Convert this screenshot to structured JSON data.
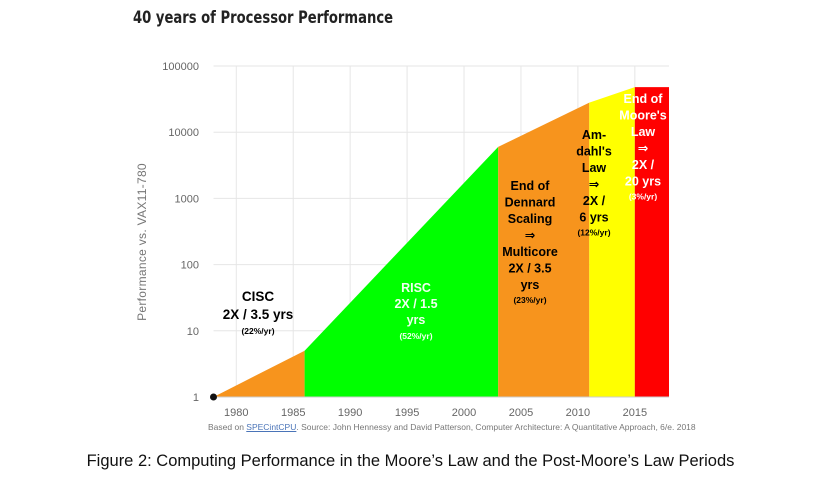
{
  "chart_data": {
    "type": "area",
    "title": "40 years of Processor Performance",
    "ylabel": "Performance vs. VAX11-780",
    "xlabel": "",
    "y_scale": "log",
    "ylim": [
      1,
      100000
    ],
    "xlim": [
      1978,
      2018
    ],
    "y_ticks": [
      "1",
      "10",
      "100",
      "1000",
      "10000",
      "100000"
    ],
    "x_ticks": [
      "1980",
      "1985",
      "1990",
      "1995",
      "2000",
      "2005",
      "2010",
      "2015"
    ],
    "x": [
      1978,
      1986,
      2003,
      2011,
      2015
    ],
    "y": [
      1,
      5,
      6000,
      28000,
      48000
    ],
    "regions": [
      {
        "from": 1978,
        "to": 1986,
        "color": "#f7941d",
        "lines": [
          "CISC",
          "2X / 3.5 yrs"
        ],
        "rate": "(22%/yr)",
        "text_color": "#000000"
      },
      {
        "from": 1986,
        "to": 2003,
        "color": "#00ff00",
        "lines": [
          "RISC",
          "2X / 1.5",
          "yrs"
        ],
        "rate": "(52%/yr)",
        "text_color": "#f0fff0"
      },
      {
        "from": 2003,
        "to": 2011,
        "color": "#f7941d",
        "lines": [
          "End of",
          "Dennard",
          "Scaling",
          "⇒",
          "Multicore",
          "2X / 3.5",
          "yrs"
        ],
        "rate": "(23%/yr)",
        "text_color": "#000000"
      },
      {
        "from": 2011,
        "to": 2015,
        "color": "#ffff00",
        "lines": [
          "Am-",
          "dahl's",
          "Law",
          "⇒",
          "2X /",
          "6 yrs"
        ],
        "rate": "(12%/yr)",
        "text_color": "#000000"
      },
      {
        "from": 2015,
        "to": 2018,
        "color": "#ff0000",
        "lines": [
          "End of",
          "Moore's",
          "Law",
          "⇒",
          "2X /",
          "20 yrs"
        ],
        "rate": "(3%/yr)",
        "text_color": "#ffffff"
      }
    ],
    "grid": true
  },
  "source": {
    "prefix": "Based on ",
    "link": "SPECintCPU",
    "rest": ". Source: John Hennessy and David Patterson, Computer Architecture: A Quantitative Approach, 6/e. 2018"
  },
  "caption": "Figure 2: Computing Performance in the Moore’s Law and the Post-Moore’s Law Periods"
}
